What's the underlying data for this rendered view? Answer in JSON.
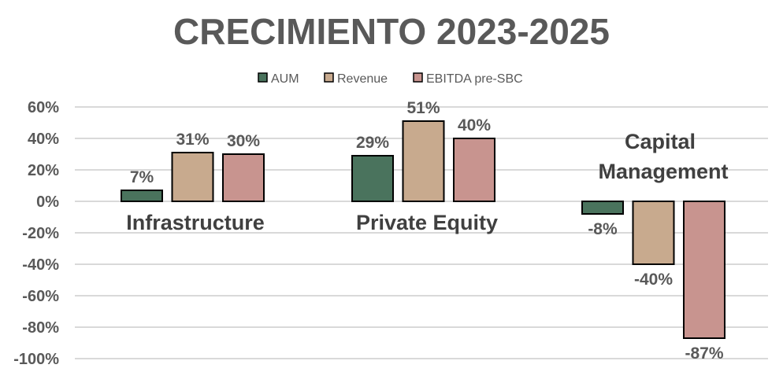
{
  "chart_data": {
    "type": "bar",
    "title": "CRECIMIENTO 2023-2025",
    "categories": [
      "Infrastructure",
      "Private Equity",
      "Capital Management"
    ],
    "series": [
      {
        "name": "AUM",
        "values": [
          7,
          29,
          -8
        ],
        "labels": [
          "7%",
          "29%",
          "-8%"
        ],
        "color": "#4a735d"
      },
      {
        "name": "Revenue",
        "values": [
          31,
          51,
          -40
        ],
        "labels": [
          "31%",
          "51%",
          "-40%"
        ],
        "color": "#c8aa8e"
      },
      {
        "name": "EBITDA pre-SBC",
        "values": [
          30,
          40,
          -87
        ],
        "labels": [
          "30%",
          "40%",
          "-87%"
        ],
        "color": "#c8948f"
      }
    ],
    "ylim": [
      -100,
      60
    ],
    "yticks": [
      60,
      40,
      20,
      0,
      -20,
      -40,
      -60,
      -80,
      -100
    ],
    "ytick_labels": [
      "60%",
      "40%",
      "20%",
      "0%",
      "-20%",
      "-40%",
      "-60%",
      "-80%",
      "-100%"
    ],
    "legend": "top-center",
    "grid": true,
    "xlabel": "",
    "ylabel": ""
  }
}
